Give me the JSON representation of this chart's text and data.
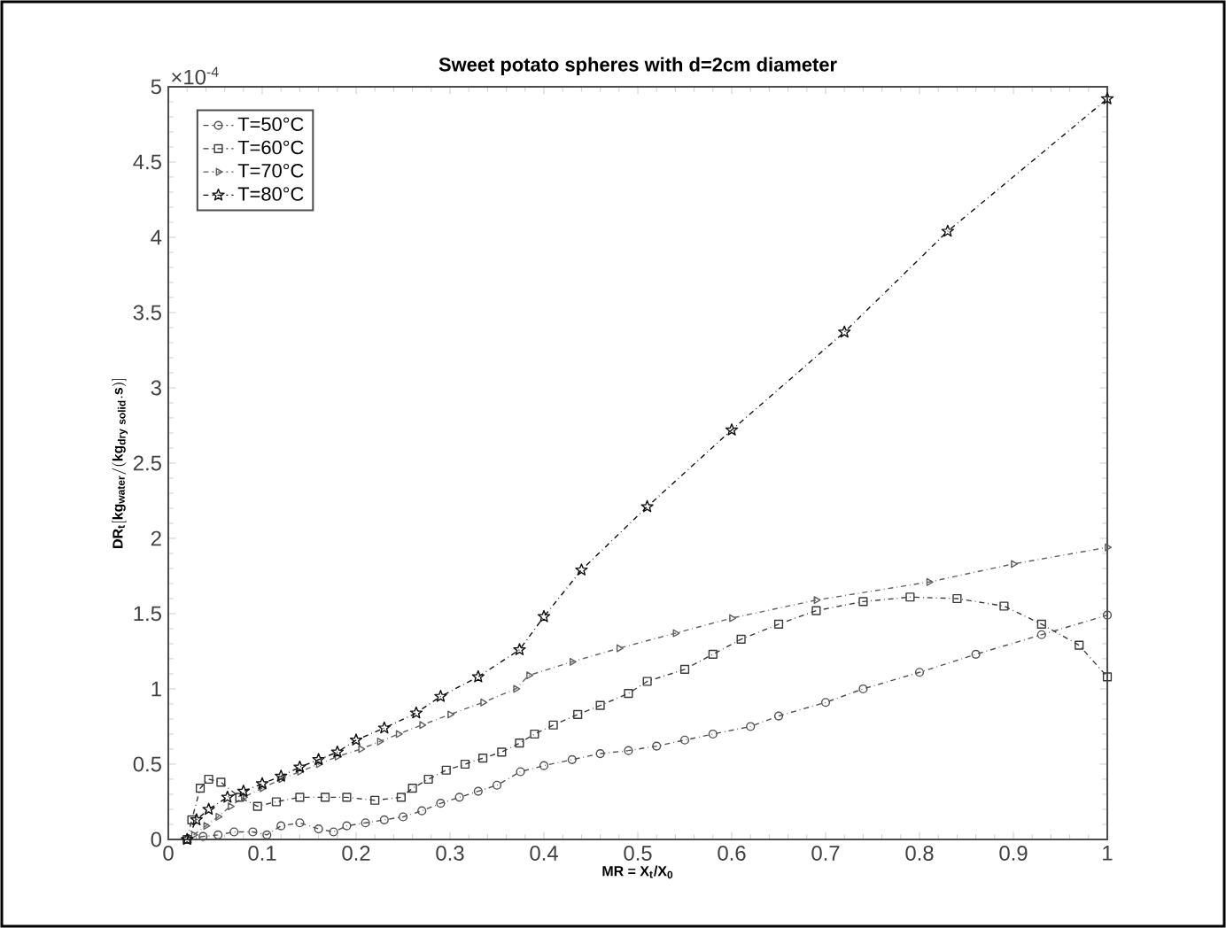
{
  "chart_data": {
    "type": "line",
    "title": "Sweet potato spheres with d=2cm diameter",
    "xlabel": "MR = X$_{t}$/X$_{0}$",
    "ylabel": "\\mathbf{DR_{t}[kg_{water}/(kg_{dry\\ solid}.s)]}",
    "annotations": [
      "×10$^{-4}$"
    ],
    "xlim": [
      0,
      1
    ],
    "ylim": [
      0,
      5
    ],
    "xticks": [
      0,
      0.1,
      0.2,
      0.3,
      0.4,
      0.5,
      0.6,
      0.7,
      0.8,
      0.9,
      1
    ],
    "yticks": [
      0,
      0.5,
      1,
      1.5,
      2,
      2.5,
      3,
      3.5,
      4,
      4.5,
      5
    ],
    "legend": "top left",
    "grid": false,
    "line_style": "dashdot",
    "series": [
      {
        "name": "T=50°C",
        "color": "#505050",
        "marker": "circle",
        "x": [
          0.02,
          0.037,
          0.053,
          0.07,
          0.09,
          0.105,
          0.12,
          0.14,
          0.16,
          0.176,
          0.19,
          0.21,
          0.23,
          0.25,
          0.27,
          0.29,
          0.31,
          0.33,
          0.35,
          0.375,
          0.4,
          0.43,
          0.46,
          0.49,
          0.52,
          0.55,
          0.58,
          0.62,
          0.65,
          0.7,
          0.74,
          0.8,
          0.86,
          0.93,
          1.0
        ],
        "values": [
          0,
          0.02,
          0.03,
          0.05,
          0.05,
          0.03,
          0.09,
          0.11,
          0.07,
          0.05,
          0.09,
          0.11,
          0.13,
          0.15,
          0.19,
          0.24,
          0.28,
          0.32,
          0.36,
          0.45,
          0.49,
          0.53,
          0.57,
          0.59,
          0.62,
          0.66,
          0.7,
          0.75,
          0.82,
          0.91,
          1.0,
          1.11,
          1.23,
          1.36,
          1.49
        ]
      },
      {
        "name": "T=60°C",
        "color": "#383838",
        "marker": "square",
        "x": [
          0.02,
          0.025,
          0.034,
          0.043,
          0.056,
          0.076,
          0.095,
          0.115,
          0.14,
          0.167,
          0.19,
          0.22,
          0.248,
          0.26,
          0.277,
          0.296,
          0.316,
          0.335,
          0.355,
          0.374,
          0.39,
          0.41,
          0.436,
          0.46,
          0.49,
          0.51,
          0.55,
          0.58,
          0.61,
          0.65,
          0.69,
          0.74,
          0.79,
          0.84,
          0.89,
          0.93,
          0.97,
          1.0
        ],
        "values": [
          0,
          0.13,
          0.34,
          0.4,
          0.38,
          0.28,
          0.22,
          0.25,
          0.28,
          0.28,
          0.28,
          0.26,
          0.28,
          0.34,
          0.4,
          0.46,
          0.5,
          0.54,
          0.58,
          0.64,
          0.7,
          0.76,
          0.83,
          0.89,
          0.97,
          1.05,
          1.13,
          1.23,
          1.33,
          1.43,
          1.52,
          1.58,
          1.61,
          1.6,
          1.55,
          1.43,
          1.29,
          1.08
        ]
      },
      {
        "name": "T=70°C",
        "color": "#606060",
        "marker": "triangle",
        "x": [
          0.027,
          0.04,
          0.053,
          0.066,
          0.08,
          0.1,
          0.12,
          0.14,
          0.16,
          0.18,
          0.205,
          0.225,
          0.245,
          0.27,
          0.3,
          0.335,
          0.37,
          0.384,
          0.43,
          0.48,
          0.54,
          0.6,
          0.69,
          0.81,
          0.9,
          1.0
        ],
        "values": [
          0.03,
          0.09,
          0.15,
          0.22,
          0.28,
          0.34,
          0.4,
          0.45,
          0.5,
          0.55,
          0.6,
          0.65,
          0.7,
          0.76,
          0.83,
          0.91,
          1.0,
          1.09,
          1.18,
          1.27,
          1.37,
          1.47,
          1.59,
          1.71,
          1.83,
          1.94
        ]
      },
      {
        "name": "T=80°C",
        "color": "#101010",
        "marker": "star",
        "x": [
          0.02,
          0.03,
          0.043,
          0.063,
          0.08,
          0.1,
          0.12,
          0.14,
          0.16,
          0.18,
          0.2,
          0.23,
          0.264,
          0.29,
          0.33,
          0.374,
          0.4,
          0.44,
          0.51,
          0.6,
          0.72,
          0.83,
          1.0
        ],
        "values": [
          0,
          0.13,
          0.2,
          0.28,
          0.32,
          0.37,
          0.42,
          0.48,
          0.53,
          0.58,
          0.66,
          0.74,
          0.84,
          0.95,
          1.08,
          1.26,
          1.48,
          1.79,
          2.21,
          2.72,
          3.37,
          4.04,
          4.92
        ]
      }
    ]
  }
}
